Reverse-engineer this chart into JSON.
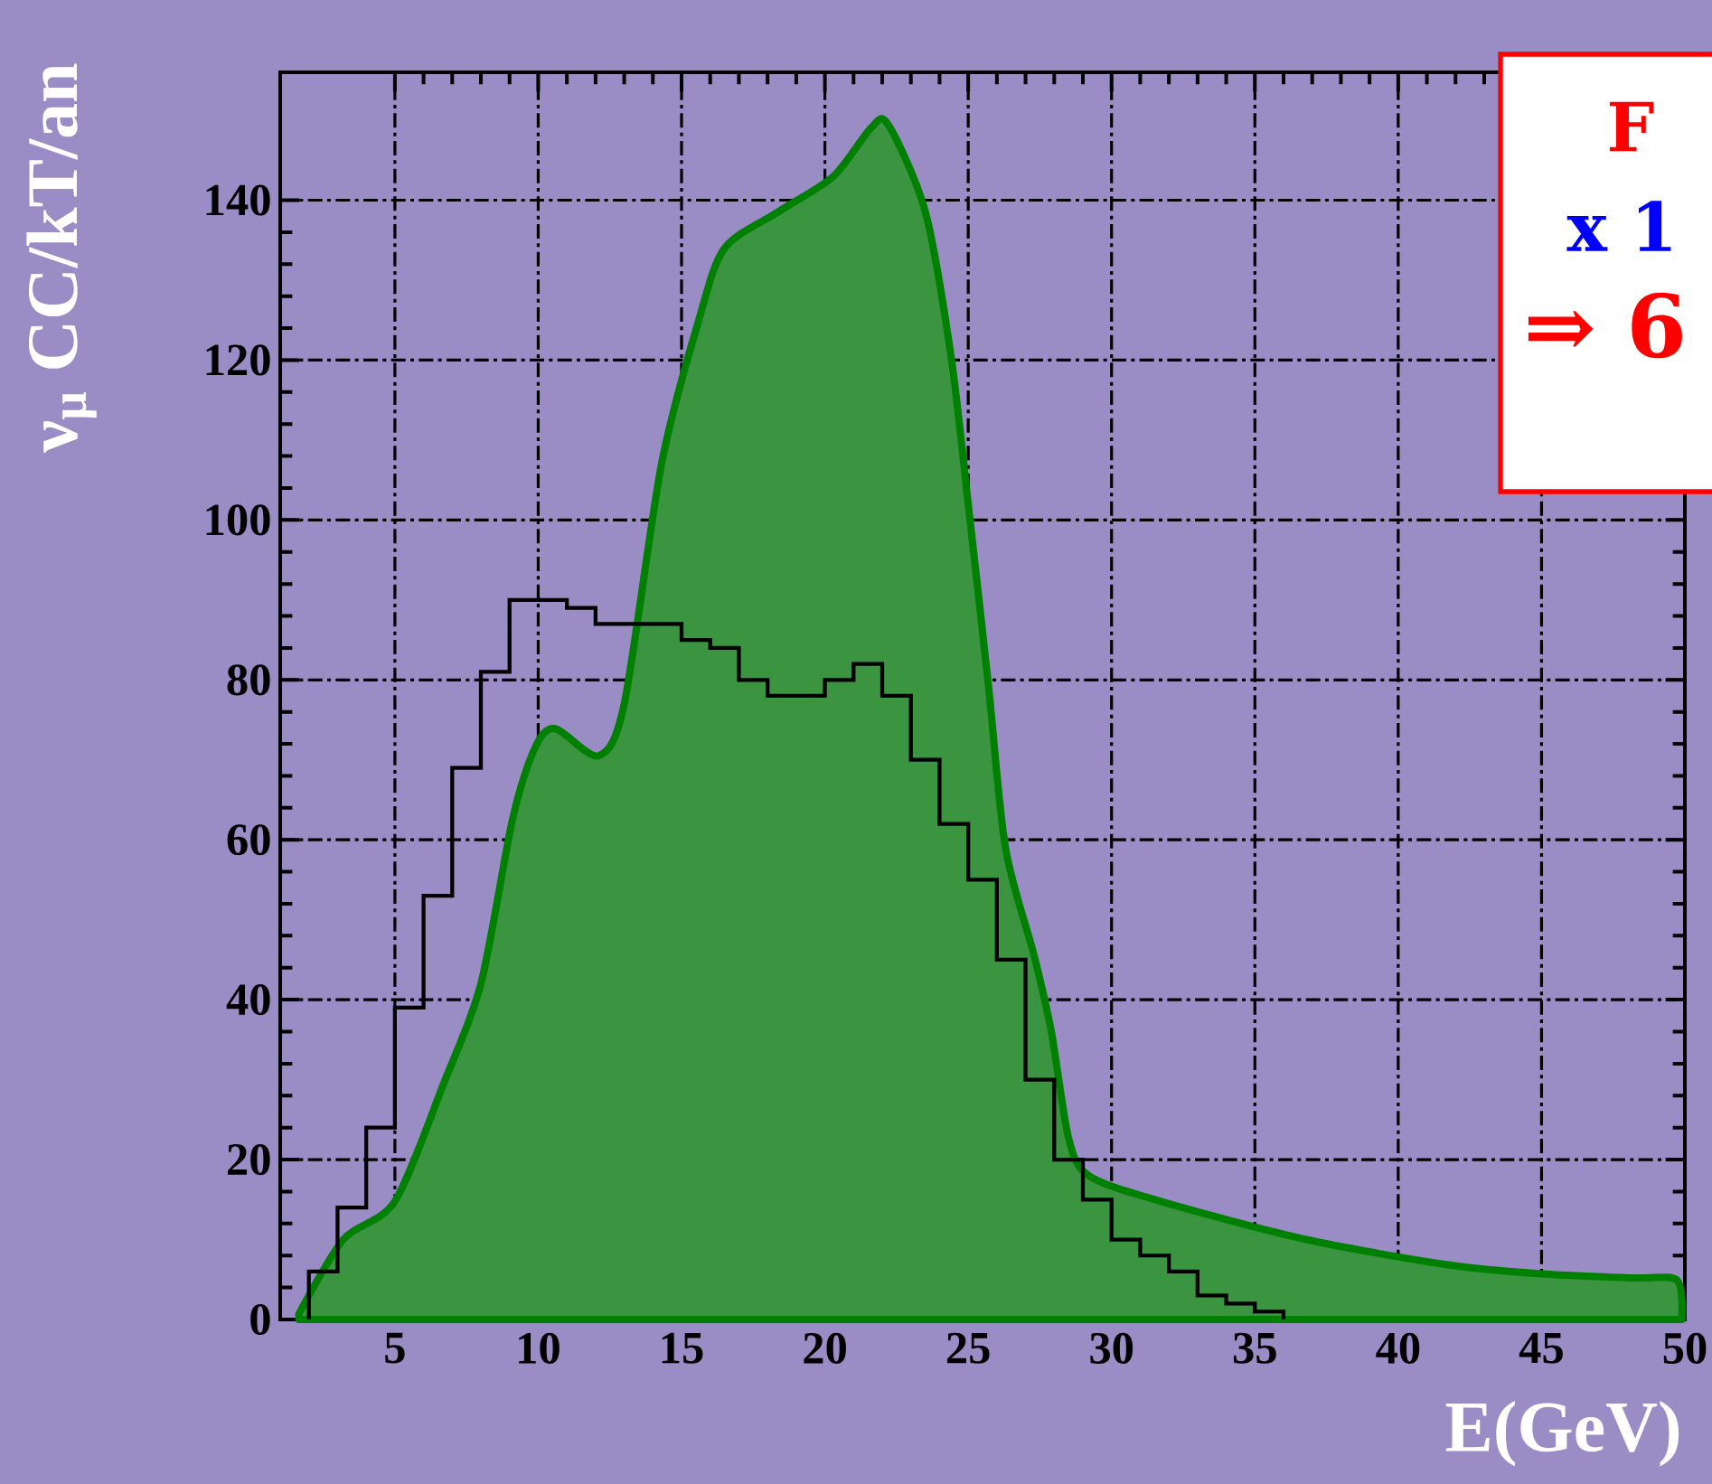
{
  "chart_data": {
    "type": "area",
    "xlabel": "E(GeV)",
    "ylabel": "ν$_{μ}$ CC/kT/an",
    "xlim": [
      1,
      50
    ],
    "ylim": [
      0,
      156
    ],
    "xticks": [
      5,
      10,
      15,
      20,
      25,
      30,
      35,
      40,
      45,
      50
    ],
    "yticks": [
      0,
      20,
      40,
      60,
      80,
      100,
      120,
      140
    ],
    "grid": true,
    "annotations": [
      "F",
      "x 1",
      "⇒ 6"
    ],
    "series": [
      {
        "color": "#008000",
        "x": [
          1.65,
          3.2,
          5,
          6.7,
          8,
          9.1,
          9.9,
          10.6,
          12.1,
          13,
          14.3,
          15.6,
          16.5,
          18.4,
          20.3,
          21.6,
          22.2,
          23.5,
          24.4,
          25,
          25.7,
          26.3,
          27.3,
          27.9,
          28.5,
          29.2,
          31.7,
          36.8,
          41.8,
          45,
          48.2,
          49.7,
          49.9
        ],
        "values": [
          0.7,
          10,
          14.8,
          29.5,
          42,
          62.5,
          71.6,
          73.9,
          70.5,
          77,
          107,
          125,
          134,
          138.6,
          143,
          149,
          149.5,
          138.6,
          120.5,
          102,
          79.5,
          59,
          45.5,
          36,
          22.7,
          18,
          14.8,
          10,
          6.8,
          5.7,
          5.2,
          5,
          1
        ]
      },
      {
        "type": "histogram",
        "color": "#000000",
        "bins": [
          2,
          3,
          4,
          5,
          6,
          7,
          8,
          9,
          10,
          11,
          12,
          13,
          14,
          15,
          16,
          17,
          18,
          19,
          20,
          21,
          22,
          23,
          24,
          25,
          26,
          27,
          28,
          29,
          30,
          31,
          32,
          33,
          34,
          35,
          36
        ],
        "values": [
          6,
          14,
          24,
          39,
          53,
          69,
          81,
          90,
          90,
          89,
          87,
          87,
          87,
          85,
          84,
          80,
          78,
          78,
          80,
          82,
          78,
          70,
          62,
          55,
          45,
          30,
          20,
          15,
          10,
          8,
          6,
          3,
          2,
          1
        ]
      }
    ]
  }
}
